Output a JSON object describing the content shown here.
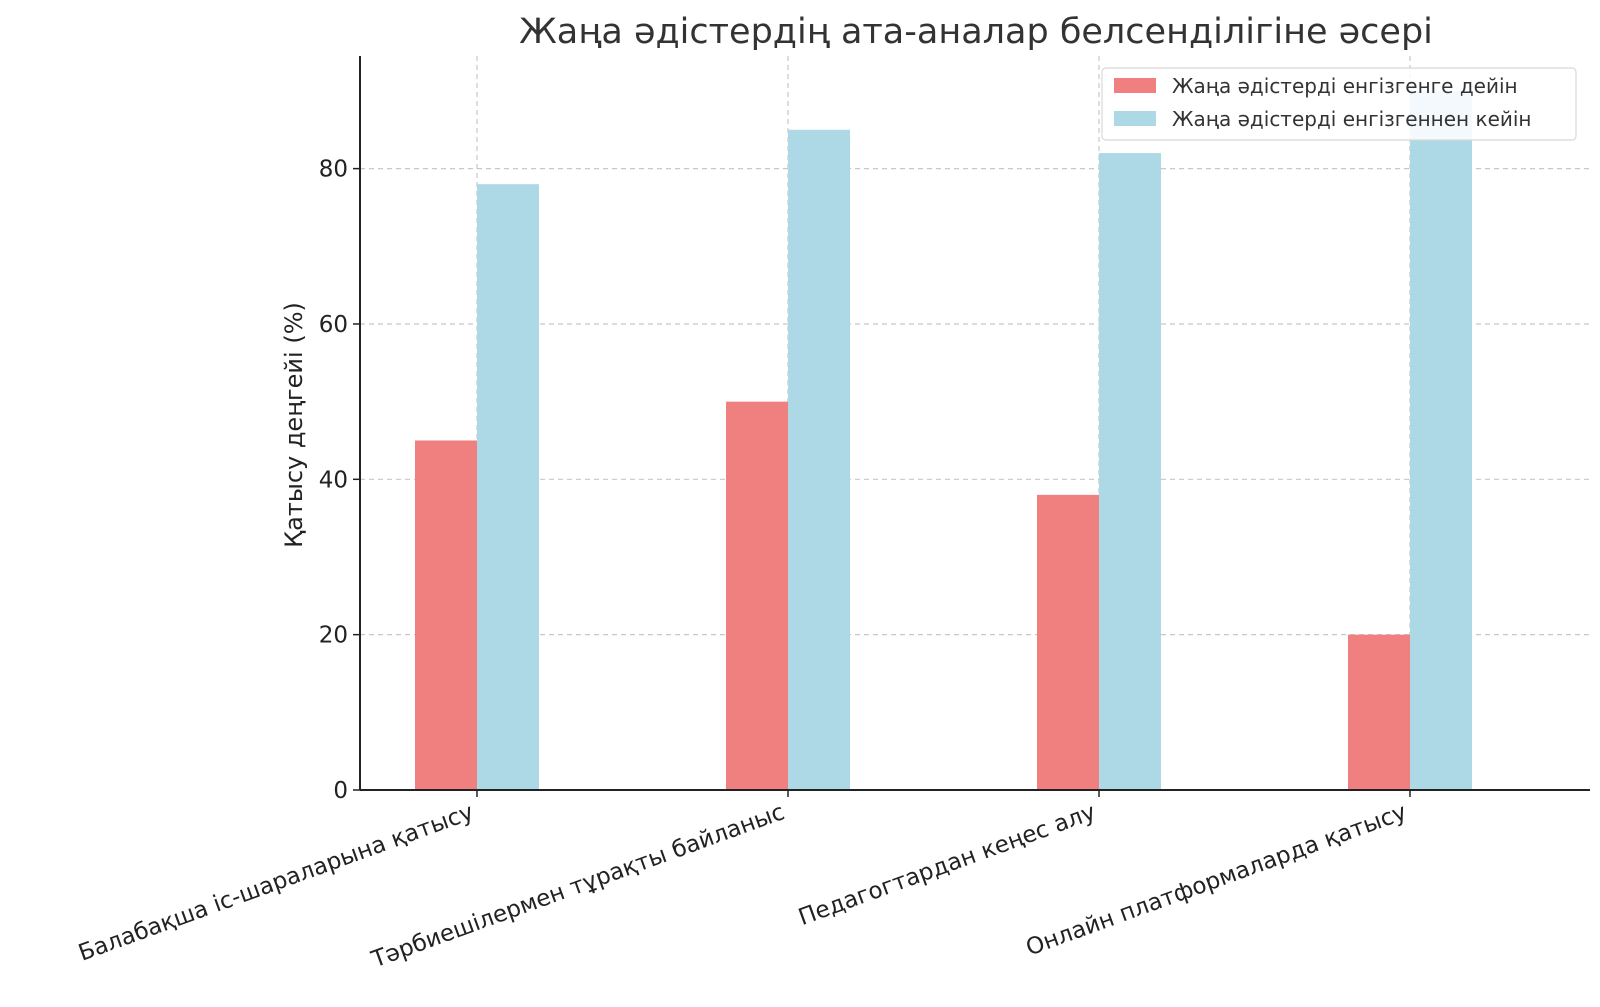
{
  "chart_data": {
    "type": "bar",
    "title": "Жаңа әдістердің ата-аналар белсенділігіне әсері",
    "xlabel": "",
    "ylabel": "Қатысу деңгейі (%)",
    "categories": [
      "Балабақша іс-шараларына қатысу",
      "Тәрбиешілермен тұрақты байланыс",
      "Педагогтардан кеңес алу",
      "Онлайн платформаларда қатысу"
    ],
    "series": [
      {
        "name": "Жаңа әдістерді енгізгенге дейін",
        "values": [
          45,
          50,
          38,
          20
        ],
        "color": "#f08080"
      },
      {
        "name": "Жаңа әдістерді енгізгеннен кейін",
        "values": [
          78,
          85,
          82,
          90
        ],
        "color": "#add8e6"
      }
    ],
    "ylim": [
      0,
      94.5
    ],
    "yticks": [
      0,
      20,
      40,
      60,
      80
    ],
    "grid": true,
    "legend_position": "top-right"
  }
}
